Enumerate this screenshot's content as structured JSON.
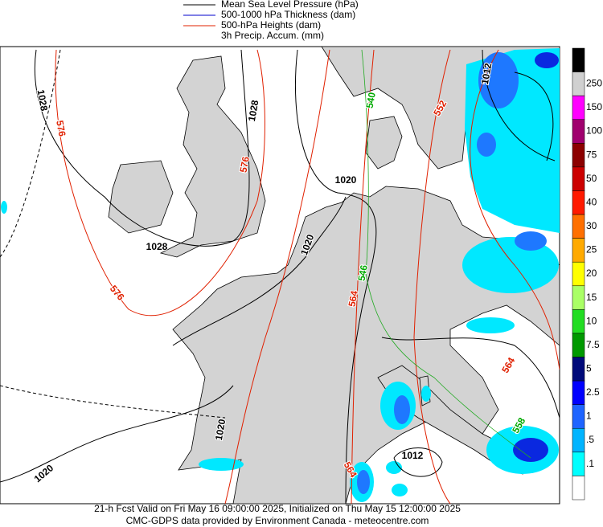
{
  "legend": [
    {
      "label": "Mean Sea Level Pressure (hPa)",
      "color": "#000000"
    },
    {
      "label": "500-1000 hPa Thickness (dam)",
      "color": "#0000cc"
    },
    {
      "label": "500-hPa Heights (dam)",
      "color": "#e02000"
    },
    {
      "label": "3h Precip. Accum. (mm)",
      "color": null
    }
  ],
  "colorbar": {
    "labels": [
      "250",
      "150",
      "100",
      "75",
      "50",
      "40",
      "30",
      "25",
      "20",
      "15",
      "10",
      "7.5",
      "5",
      "2.5",
      "1",
      ".5",
      ".1"
    ],
    "colors": [
      "#000000",
      "#d0d0d0",
      "#ff00ff",
      "#a0006e",
      "#8c0000",
      "#cc0000",
      "#ff1a00",
      "#ff7000",
      "#ffaa00",
      "#ffff00",
      "#aaff66",
      "#22dd22",
      "#009900",
      "#000a7a",
      "#0000ff",
      "#1e64ff",
      "#00b4ff",
      "#00ffff",
      "#ffffff"
    ]
  },
  "contour_labels": [
    {
      "text": "1028",
      "color": "#000000"
    },
    {
      "text": "576",
      "color": "#e02000"
    },
    {
      "text": "1028",
      "color": "#000000"
    },
    {
      "text": "576",
      "color": "#e02000"
    },
    {
      "text": "1020",
      "color": "#000000"
    },
    {
      "text": "1028",
      "color": "#000000"
    },
    {
      "text": "576",
      "color": "#e02000"
    },
    {
      "text": "540",
      "color": "#00aa00"
    },
    {
      "text": "552",
      "color": "#e02000"
    },
    {
      "text": "1012",
      "color": "#000000"
    },
    {
      "text": "1020",
      "color": "#000000"
    },
    {
      "text": "546",
      "color": "#00aa00"
    },
    {
      "text": "564",
      "color": "#e02000"
    },
    {
      "text": "564",
      "color": "#e02000"
    },
    {
      "text": "1020",
      "color": "#000000"
    },
    {
      "text": "1012",
      "color": "#000000"
    },
    {
      "text": "564",
      "color": "#e02000"
    },
    {
      "text": "1020",
      "color": "#000000"
    },
    {
      "text": "558",
      "color": "#00aa00"
    }
  ],
  "footer": [
    "21-h Fcst Valid on Fri May 16 09:00:00 2025, Initialized on Thu May 15 12:00:00 2025",
    "CMC-GDPS data provided by Environment Canada - meteocentre.com"
  ]
}
